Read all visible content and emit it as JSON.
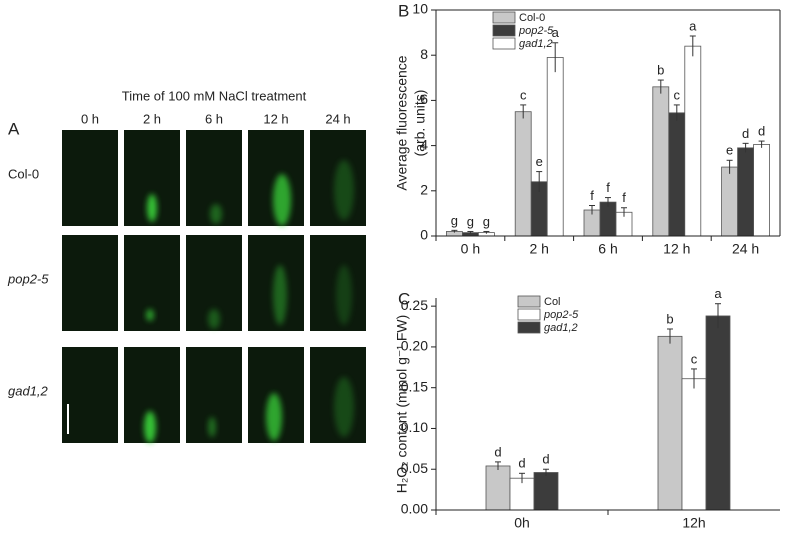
{
  "panel_a": {
    "label": "A",
    "title": "Time of 100 mM NaCl treatment",
    "columns": [
      "0 h",
      "2 h",
      "6 h",
      "12 h",
      "24 h"
    ],
    "rows": [
      "Col-0",
      "pop2-5",
      "gad1,2"
    ]
  },
  "chart_data": [
    {
      "type": "bar",
      "panel_label": "B",
      "y_label": [
        "Average fluorescence",
        "(arb. units)"
      ],
      "categories": [
        "0 h",
        "2 h",
        "6 h",
        "12 h",
        "24 h"
      ],
      "series": [
        {
          "name": "Col-0",
          "color": "#c8c8c8",
          "values": [
            0.2,
            5.5,
            1.15,
            6.6,
            3.05
          ],
          "errors": [
            0.05,
            0.3,
            0.2,
            0.3,
            0.3
          ],
          "letters": [
            "g",
            "c",
            "f",
            "b",
            "e"
          ]
        },
        {
          "name": "pop2-5",
          "color": "#3c3c3c",
          "values": [
            0.15,
            2.4,
            1.5,
            5.45,
            3.9
          ],
          "errors": [
            0.05,
            0.45,
            0.2,
            0.35,
            0.2
          ],
          "letters": [
            "g",
            "e",
            "f",
            "c",
            "d"
          ]
        },
        {
          "name": "gad1,2",
          "color": "#ffffff",
          "values": [
            0.15,
            7.9,
            1.05,
            8.4,
            4.05
          ],
          "errors": [
            0.05,
            0.65,
            0.2,
            0.45,
            0.15
          ],
          "letters": [
            "g",
            "a",
            "f",
            "a",
            "d"
          ]
        }
      ],
      "ylim": [
        0,
        10
      ],
      "yticks": [
        0,
        2,
        4,
        6,
        8,
        10
      ]
    },
    {
      "type": "bar",
      "panel_label": "C",
      "y_label": [
        "H₂O₂ content (mmol g⁻¹ FW)"
      ],
      "categories": [
        "0h",
        "12h"
      ],
      "series": [
        {
          "name": "Col",
          "color": "#c8c8c8",
          "values": [
            0.054,
            0.213
          ],
          "errors": [
            0.005,
            0.009
          ],
          "letters": [
            "d",
            "b"
          ]
        },
        {
          "name": "pop2-5",
          "color": "#ffffff",
          "values": [
            0.039,
            0.161
          ],
          "errors": [
            0.006,
            0.012
          ],
          "letters": [
            "d",
            "c"
          ]
        },
        {
          "name": "gad1,2",
          "color": "#3c3c3c",
          "values": [
            0.046,
            0.238
          ],
          "errors": [
            0.004,
            0.015
          ],
          "letters": [
            "d",
            "a"
          ]
        }
      ],
      "ylim": [
        0,
        0.26
      ],
      "yticks": [
        {
          "value": 0,
          "label": "0.00"
        },
        {
          "value": 0.05,
          "label": "0.05"
        },
        {
          "value": 0.1,
          "label": "0.10"
        },
        {
          "value": 0.15,
          "label": "0.15"
        },
        {
          "value": 0.2,
          "label": "0.20"
        },
        {
          "value": 0.25,
          "label": "0.25"
        }
      ]
    }
  ]
}
